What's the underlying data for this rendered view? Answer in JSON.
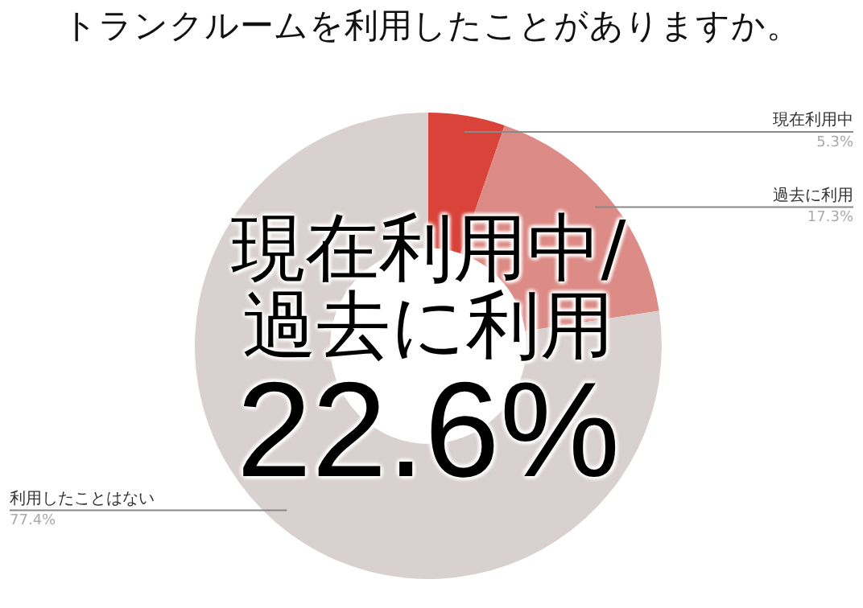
{
  "chart_data": {
    "type": "donut",
    "title": "トランクルームを利用したことがありますか。",
    "categories": [
      "現在利用中",
      "過去に利用",
      "利用したことはない"
    ],
    "values": [
      5.3,
      17.3,
      77.4
    ],
    "value_labels": [
      "5.3%",
      "17.3%",
      "77.4%"
    ],
    "colors": [
      "#d9433a",
      "#dd8b86",
      "#d9d1cf"
    ],
    "annotations": [
      "現在利用中/過去に利用",
      "22.6%"
    ],
    "legend": false
  }
}
